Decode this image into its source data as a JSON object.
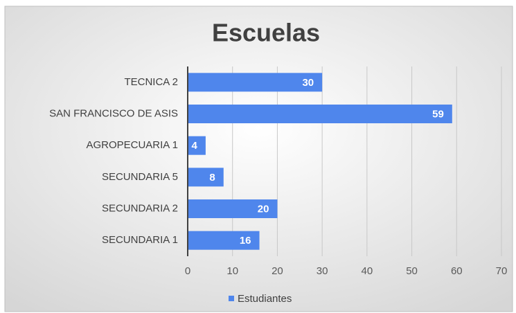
{
  "chart_data": {
    "type": "bar",
    "orientation": "horizontal",
    "title": "Escuelas",
    "categories": [
      "TECNICA 2",
      "SAN FRANCISCO DE ASIS",
      "AGROPECUARIA 1",
      "SECUNDARIA 5",
      "SECUNDARIA 2",
      "SECUNDARIA 1"
    ],
    "series": [
      {
        "name": "Estudiantes",
        "color": "#4f86ec",
        "values": [
          30,
          59,
          4,
          8,
          20,
          16
        ]
      }
    ],
    "xlim": [
      0,
      70
    ],
    "xticks": [
      0,
      10,
      20,
      30,
      40,
      50,
      60,
      70
    ],
    "grid": true,
    "legend": "bottom"
  }
}
